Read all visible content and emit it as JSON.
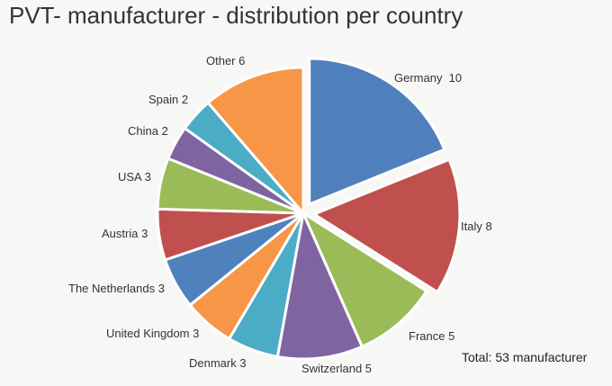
{
  "chart_data": {
    "type": "pie",
    "title": "PVT- manufacturer - distribution per country",
    "categories": [
      "Germany",
      "Italy",
      "France",
      "Switzerland",
      "Denmark",
      "United Kingdom",
      "The Netherlands",
      "Austria",
      "USA",
      "China",
      "Spain",
      "Other"
    ],
    "labels": [
      "Germany  10",
      "Italy 8",
      "France 5",
      "Switzerland 5",
      "Denmark 3",
      "United Kingdom 3",
      "The Netherlands 3",
      "Austria 3",
      "USA 3",
      "China 2",
      "Spain 2",
      "Other 6"
    ],
    "values": [
      10,
      8,
      5,
      5,
      3,
      3,
      3,
      3,
      3,
      2,
      2,
      6
    ],
    "colors": [
      "#4f7fbd",
      "#c0504d",
      "#9bbb59",
      "#8064a2",
      "#4bacc6",
      "#f79646",
      "#4f81bd",
      "#c0504d",
      "#9bbb59",
      "#8064a2",
      "#4bacc6",
      "#f79646"
    ],
    "exploded": [
      true,
      true,
      false,
      false,
      false,
      false,
      false,
      false,
      false,
      false,
      false,
      false
    ],
    "start_angle": "12 o'clock",
    "direction": "clockwise",
    "note": "Total: 53 manufacturer"
  }
}
